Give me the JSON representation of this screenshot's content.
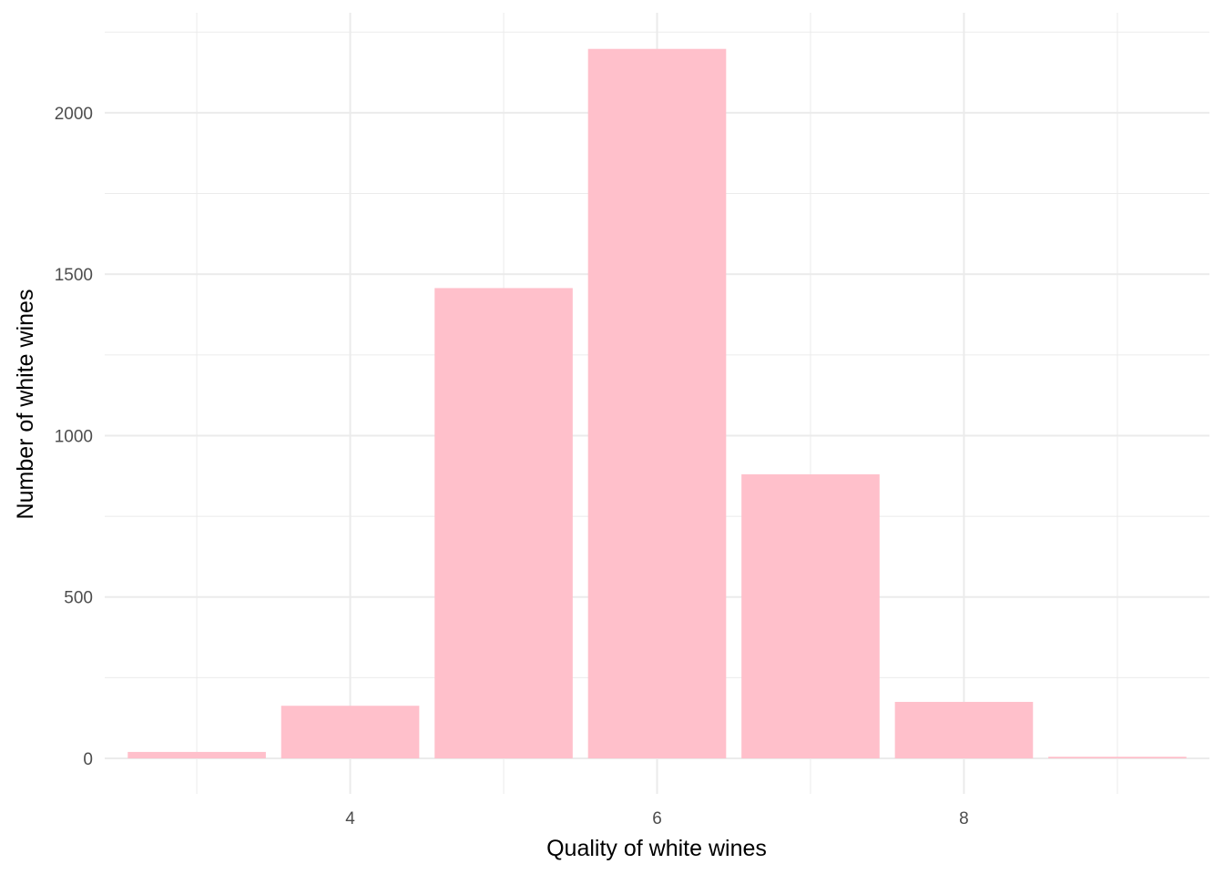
{
  "chart_data": {
    "type": "bar",
    "title": "",
    "xlabel": "Quality of white wines",
    "ylabel": "Number of white wines",
    "x": [
      3,
      4,
      5,
      6,
      7,
      8,
      9
    ],
    "values": [
      20,
      163,
      1457,
      2198,
      880,
      175,
      5
    ],
    "xlim": [
      2.4,
      9.6
    ],
    "ylim": [
      -110,
      2310
    ],
    "x_ticks": [
      4,
      6,
      8
    ],
    "y_ticks": [
      0,
      500,
      1000,
      1500,
      2000
    ],
    "bar_color": "#FFC0CB",
    "grid": true,
    "grid_color": "#EBEBEB",
    "legend": "none"
  }
}
